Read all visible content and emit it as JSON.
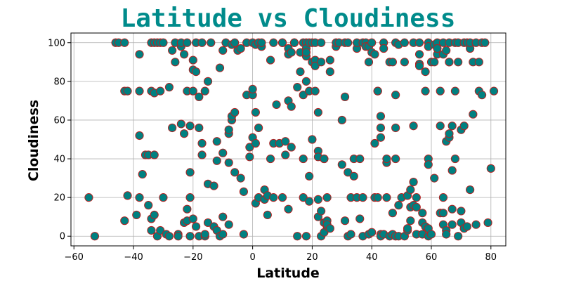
{
  "chart_data": {
    "type": "scatter",
    "title": "Latitude vs Cloudiness",
    "xlabel": "Latitude",
    "ylabel": "Cloudiness",
    "xlim": [
      -61,
      85
    ],
    "ylim": [
      -5,
      105
    ],
    "xticks": [
      -60,
      -40,
      -20,
      0,
      20,
      40,
      60,
      80
    ],
    "yticks": [
      0,
      20,
      40,
      60,
      80,
      100
    ],
    "grid": true,
    "colors": {
      "title": "#008b8b",
      "marker_fill": "#008080",
      "marker_edge": "#b22222",
      "grid": "#b0b0b0"
    },
    "points": [
      [
        -55,
        20
      ],
      [
        -53,
        0
      ],
      [
        -46,
        100
      ],
      [
        -45,
        100
      ],
      [
        -43,
        100
      ],
      [
        -43,
        75
      ],
      [
        -43,
        8
      ],
      [
        -42,
        21
      ],
      [
        -42,
        75
      ],
      [
        -39,
        11
      ],
      [
        -38,
        94
      ],
      [
        -38,
        75
      ],
      [
        -38,
        52
      ],
      [
        -38,
        20
      ],
      [
        -37,
        32
      ],
      [
        -36,
        42
      ],
      [
        -35,
        16
      ],
      [
        -35,
        42
      ],
      [
        -34,
        3
      ],
      [
        -34,
        100
      ],
      [
        -34,
        75
      ],
      [
        -34,
        9
      ],
      [
        -33,
        74
      ],
      [
        -33,
        100
      ],
      [
        -33,
        11
      ],
      [
        -33,
        42
      ],
      [
        -32,
        100
      ],
      [
        -32,
        0
      ],
      [
        -31,
        75
      ],
      [
        -31,
        3
      ],
      [
        -31,
        100
      ],
      [
        -30,
        100
      ],
      [
        -30,
        20
      ],
      [
        -29,
        1
      ],
      [
        -28,
        77
      ],
      [
        -28,
        0
      ],
      [
        -27,
        96
      ],
      [
        -27,
        56
      ],
      [
        -26,
        100
      ],
      [
        -26,
        90
      ],
      [
        -25,
        1
      ],
      [
        -25,
        0
      ],
      [
        -24,
        58
      ],
      [
        -24,
        98
      ],
      [
        -24,
        100
      ],
      [
        -23,
        53
      ],
      [
        -23,
        94
      ],
      [
        -23,
        7
      ],
      [
        -22,
        8
      ],
      [
        -22,
        100
      ],
      [
        -22,
        75
      ],
      [
        -22,
        14
      ],
      [
        -21,
        20
      ],
      [
        -21,
        57
      ],
      [
        -21,
        33
      ],
      [
        -21,
        0
      ],
      [
        -20,
        91
      ],
      [
        -20,
        86
      ],
      [
        -20,
        75
      ],
      [
        -20,
        9
      ],
      [
        -19,
        5
      ],
      [
        -19,
        100
      ],
      [
        -19,
        85
      ],
      [
        -18,
        56
      ],
      [
        -18,
        72
      ],
      [
        -18,
        0
      ],
      [
        -17,
        42
      ],
      [
        -17,
        100
      ],
      [
        -17,
        48
      ],
      [
        -16,
        75
      ],
      [
        -16,
        0
      ],
      [
        -16,
        1
      ],
      [
        -15,
        27
      ],
      [
        -15,
        80
      ],
      [
        -15,
        7
      ],
      [
        -14,
        100
      ],
      [
        -13,
        5
      ],
      [
        -13,
        26
      ],
      [
        -12,
        39
      ],
      [
        -12,
        49
      ],
      [
        -12,
        3
      ],
      [
        -11,
        0
      ],
      [
        -11,
        87
      ],
      [
        -10,
        96
      ],
      [
        -10,
        10
      ],
      [
        -10,
        1
      ],
      [
        -10,
        43
      ],
      [
        -9,
        100
      ],
      [
        -8,
        53
      ],
      [
        -8,
        55
      ],
      [
        -8,
        38
      ],
      [
        -8,
        6
      ],
      [
        -7,
        60
      ],
      [
        -7,
        62
      ],
      [
        -7,
        99
      ],
      [
        -6,
        100
      ],
      [
        -6,
        64
      ],
      [
        -6,
        33
      ],
      [
        -5,
        96
      ],
      [
        -4,
        30
      ],
      [
        -4,
        97
      ],
      [
        -3,
        1
      ],
      [
        -3,
        23
      ],
      [
        -2,
        73
      ],
      [
        -2,
        100
      ],
      [
        -1,
        46
      ],
      [
        -1,
        41
      ],
      [
        0,
        100
      ],
      [
        0,
        51
      ],
      [
        0,
        73
      ],
      [
        0,
        76
      ],
      [
        1,
        99
      ],
      [
        1,
        48
      ],
      [
        1,
        64
      ],
      [
        1,
        17
      ],
      [
        2,
        56
      ],
      [
        2,
        100
      ],
      [
        2,
        20
      ],
      [
        3,
        98
      ],
      [
        3,
        100
      ],
      [
        4,
        24
      ],
      [
        4,
        19
      ],
      [
        5,
        21
      ],
      [
        5,
        11
      ],
      [
        6,
        40
      ],
      [
        6,
        91
      ],
      [
        7,
        100
      ],
      [
        7,
        48
      ],
      [
        7,
        20
      ],
      [
        8,
        68
      ],
      [
        9,
        48
      ],
      [
        10,
        100
      ],
      [
        10,
        20
      ],
      [
        10,
        100
      ],
      [
        11,
        49
      ],
      [
        11,
        42
      ],
      [
        12,
        97
      ],
      [
        12,
        14
      ],
      [
        12,
        94
      ],
      [
        12,
        70
      ],
      [
        13,
        95
      ],
      [
        13,
        67
      ],
      [
        13,
        46
      ],
      [
        14,
        100
      ],
      [
        14,
        100
      ],
      [
        15,
        77
      ],
      [
        15,
        0
      ],
      [
        16,
        85
      ],
      [
        16,
        95
      ],
      [
        17,
        100
      ],
      [
        17,
        73
      ],
      [
        17,
        20
      ],
      [
        17,
        40
      ],
      [
        18,
        100
      ],
      [
        18,
        97
      ],
      [
        18,
        93
      ],
      [
        18,
        95
      ],
      [
        18,
        80
      ],
      [
        18,
        0
      ],
      [
        19,
        31
      ],
      [
        19,
        100
      ],
      [
        19,
        18
      ],
      [
        19,
        75
      ],
      [
        20,
        90
      ],
      [
        20,
        50
      ],
      [
        20,
        100
      ],
      [
        21,
        91
      ],
      [
        21,
        88
      ],
      [
        21,
        75
      ],
      [
        21,
        100
      ],
      [
        22,
        64
      ],
      [
        22,
        44
      ],
      [
        22,
        41
      ],
      [
        22,
        19
      ],
      [
        22,
        10
      ],
      [
        23,
        100
      ],
      [
        23,
        90
      ],
      [
        23,
        0
      ],
      [
        23,
        13
      ],
      [
        24,
        2
      ],
      [
        24,
        7
      ],
      [
        24,
        40
      ],
      [
        24,
        40
      ],
      [
        25,
        5
      ],
      [
        25,
        8
      ],
      [
        25,
        6
      ],
      [
        25,
        20
      ],
      [
        26,
        4
      ],
      [
        26,
        91
      ],
      [
        26,
        85
      ],
      [
        28,
        98
      ],
      [
        28,
        100
      ],
      [
        29,
        100
      ],
      [
        30,
        37
      ],
      [
        30,
        60
      ],
      [
        31,
        8
      ],
      [
        31,
        72
      ],
      [
        31,
        100
      ],
      [
        32,
        0
      ],
      [
        32,
        33
      ],
      [
        32,
        100
      ],
      [
        33,
        20
      ],
      [
        33,
        1
      ],
      [
        34,
        40
      ],
      [
        34,
        31
      ],
      [
        35,
        20
      ],
      [
        35,
        97
      ],
      [
        35,
        100
      ],
      [
        36,
        40
      ],
      [
        36,
        9
      ],
      [
        37,
        100
      ],
      [
        37,
        20
      ],
      [
        37,
        0
      ],
      [
        38,
        100
      ],
      [
        38,
        98
      ],
      [
        39,
        98
      ],
      [
        39,
        1
      ],
      [
        39,
        90
      ],
      [
        40,
        95
      ],
      [
        40,
        2
      ],
      [
        40,
        100
      ],
      [
        41,
        94
      ],
      [
        41,
        20
      ],
      [
        41,
        48
      ],
      [
        42,
        75
      ],
      [
        42,
        75
      ],
      [
        42,
        20
      ],
      [
        43,
        51
      ],
      [
        43,
        56
      ],
      [
        43,
        62
      ],
      [
        43,
        1
      ],
      [
        43,
        0
      ],
      [
        44,
        100
      ],
      [
        44,
        1
      ],
      [
        44,
        97
      ],
      [
        45,
        38
      ],
      [
        45,
        40
      ],
      [
        45,
        20
      ],
      [
        46,
        90
      ],
      [
        46,
        0
      ],
      [
        47,
        90
      ],
      [
        47,
        1
      ],
      [
        47,
        12
      ],
      [
        48,
        100
      ],
      [
        48,
        0
      ],
      [
        48,
        56
      ],
      [
        48,
        73
      ],
      [
        48,
        40
      ],
      [
        49,
        0
      ],
      [
        49,
        99
      ],
      [
        49,
        16
      ],
      [
        50,
        20
      ],
      [
        51,
        90
      ],
      [
        51,
        100
      ],
      [
        51,
        0
      ],
      [
        52,
        21
      ],
      [
        52,
        3
      ],
      [
        52,
        4
      ],
      [
        53,
        8
      ],
      [
        53,
        24
      ],
      [
        53,
        15
      ],
      [
        54,
        57
      ],
      [
        54,
        28
      ],
      [
        54,
        16
      ],
      [
        54,
        100
      ],
      [
        55,
        1
      ],
      [
        55,
        20
      ],
      [
        55,
        15
      ],
      [
        56,
        89
      ],
      [
        56,
        88
      ],
      [
        56,
        94
      ],
      [
        56,
        100
      ],
      [
        57,
        12
      ],
      [
        57,
        7
      ],
      [
        57,
        1
      ],
      [
        58,
        75
      ],
      [
        58,
        5
      ],
      [
        58,
        85
      ],
      [
        59,
        100
      ],
      [
        59,
        98
      ],
      [
        59,
        40
      ],
      [
        59,
        37
      ],
      [
        59,
        4
      ],
      [
        59,
        0
      ],
      [
        60,
        1
      ],
      [
        60,
        90
      ],
      [
        61,
        90
      ],
      [
        61,
        30
      ],
      [
        61,
        99
      ],
      [
        62,
        100
      ],
      [
        62,
        94
      ],
      [
        62,
        97
      ],
      [
        63,
        57
      ],
      [
        63,
        12
      ],
      [
        63,
        75
      ],
      [
        64,
        100
      ],
      [
        64,
        94
      ],
      [
        64,
        20
      ],
      [
        64,
        12
      ],
      [
        64,
        6
      ],
      [
        65,
        49
      ],
      [
        65,
        3
      ],
      [
        65,
        1
      ],
      [
        65,
        96
      ],
      [
        66,
        100
      ],
      [
        66,
        90
      ],
      [
        66,
        90
      ],
      [
        66,
        51
      ],
      [
        66,
        53
      ],
      [
        67,
        34
      ],
      [
        67,
        14
      ],
      [
        67,
        57
      ],
      [
        67,
        6
      ],
      [
        68,
        75
      ],
      [
        68,
        40
      ],
      [
        68,
        100
      ],
      [
        69,
        100
      ],
      [
        69,
        90
      ],
      [
        69,
        0
      ],
      [
        70,
        55
      ],
      [
        70,
        13
      ],
      [
        70,
        7
      ],
      [
        71,
        100
      ],
      [
        71,
        57
      ],
      [
        71,
        4
      ],
      [
        72,
        100
      ],
      [
        72,
        5
      ],
      [
        73,
        24
      ],
      [
        73,
        97
      ],
      [
        73,
        100
      ],
      [
        74,
        63
      ],
      [
        74,
        90
      ],
      [
        75,
        100
      ],
      [
        75,
        6
      ],
      [
        76,
        90
      ],
      [
        76,
        75
      ],
      [
        77,
        100
      ],
      [
        77,
        73
      ],
      [
        78,
        100
      ],
      [
        79,
        7
      ],
      [
        80,
        35
      ],
      [
        81,
        75
      ]
    ]
  }
}
